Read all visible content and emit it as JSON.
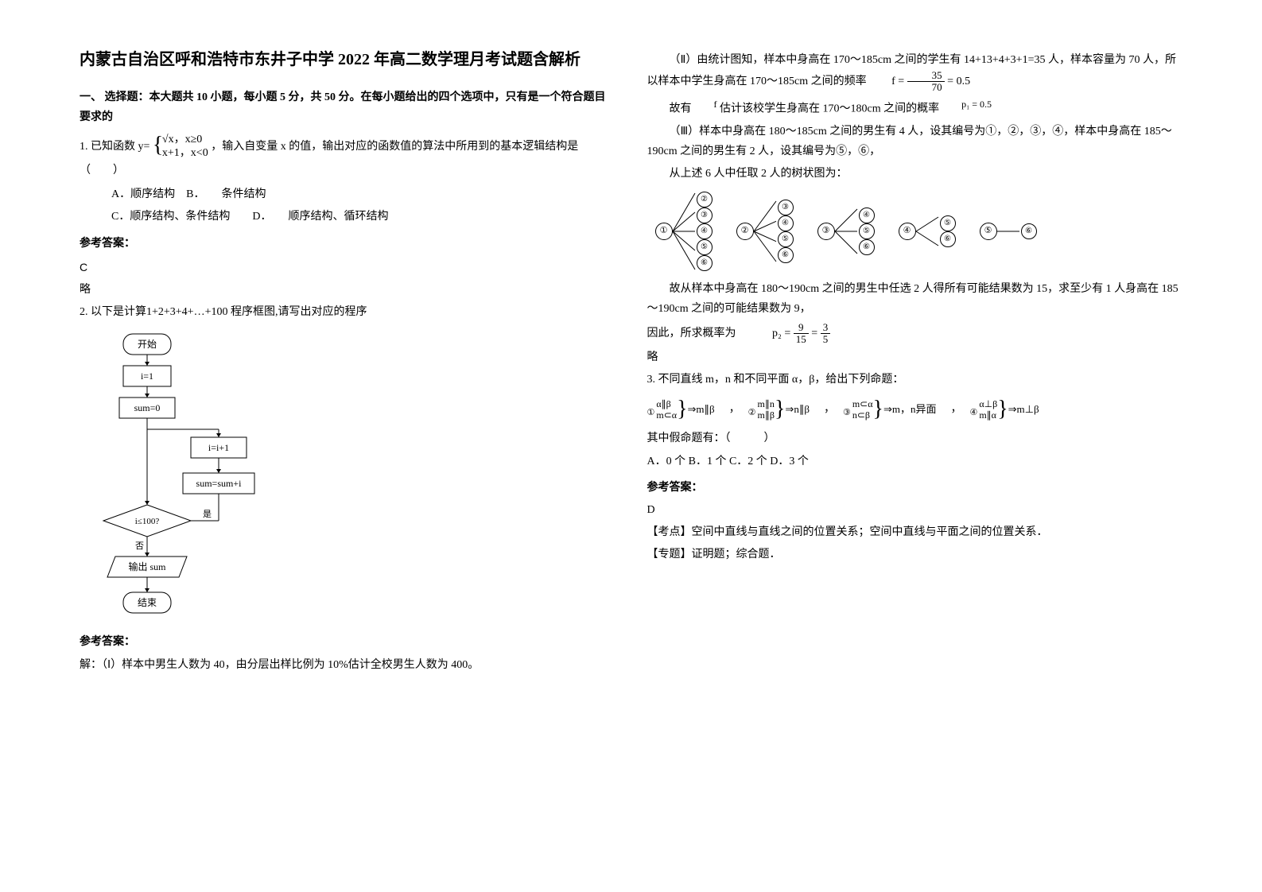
{
  "title": "内蒙古自治区呼和浩特市东井子中学 2022 年高二数学理月考试题含解析",
  "section1_header": "一、 选择题：本大题共 10 小题，每小题 5 分，共 50 分。在每小题给出的四个选项中，只有是一个符合题目要求的",
  "q1": {
    "stem_pre": "1. 已知函数 y=",
    "piecewise_top": "√x，x≥0",
    "piecewise_bot": "x+1，x<0",
    "stem_post": "，输入自变量 x 的值，输出对应的函数值的算法中所用到的基本逻辑结构是（　　）",
    "optA": "A．顺序结构",
    "optB": "B．　　条件结构",
    "optC": "C．顺序结构、条件结构",
    "optD": "D．　　顺序结构、循环结构",
    "answer_label": "参考答案：",
    "answer": "C",
    "note": "略"
  },
  "q2": {
    "stem": "2. 以下是计算",
    "expr": "1+2+3+4+…+100",
    "stem2": " 程序框图,请写出对应的程序",
    "flowchart": {
      "start": "开始",
      "init_i": "i=1",
      "init_sum": "sum=0",
      "inc_i": "i=i+1",
      "acc": "sum=sum+i",
      "cond": "i≤100?",
      "yes": "是",
      "no": "否",
      "out": "输出 sum",
      "end": "结束",
      "stroke": "#000000",
      "fill": "#ffffff"
    },
    "answer_label": "参考答案：",
    "sol_p1": "解：（Ⅰ）样本中男生人数为 40，由分层出样比例为 10%估计全校男生人数为 400。",
    "sol_p2_pre": "（Ⅱ）由统计图知，样本中身高在 170～185cm 之间的学生有 14+13+4+3+1=35 人，样本容量为 70 人，所以样本中学生身高在 170～185cm 之间的频率",
    "sol_p2_f": {
      "lhs": "f =",
      "num": "35",
      "den": "70",
      "rhs": "= 0.5"
    },
    "sol_p3_pre": "故有",
    "sol_p3_f": "f",
    "sol_p3_mid": " 估计该校学生身高在 170～180cm 之间的概率",
    "sol_p3_p1": "p₁ = 0.5",
    "sol_p4": "（Ⅲ）样本中身高在 180～185cm 之间的男生有 4 人，设其编号为①，②，③，④，样本中身高在 185～190cm 之间的男生有 2 人，设其编号为⑤，⑥，",
    "sol_p5": "从上述 6 人中任取 2 人的树状图为：",
    "tree": {
      "roots": [
        "①",
        "②",
        "③",
        "④",
        "⑤"
      ],
      "children": [
        [
          "②",
          "③",
          "④",
          "⑤",
          "⑥"
        ],
        [
          "③",
          "④",
          "⑤",
          "⑥"
        ],
        [
          "④",
          "⑤",
          "⑥"
        ],
        [
          "⑤",
          "⑥"
        ],
        [
          "⑥"
        ]
      ]
    },
    "sol_p6": "故从样本中身高在 180～190cm 之间的男生中任选 2 人得所有可能结果数为 15，求至少有 1 人身高在 185～190cm 之间的可能结果数为 9，",
    "sol_p7_pre": "因此，所求概率为",
    "sol_p7_f": {
      "lhs": "p₂ =",
      "num1": "9",
      "den1": "15",
      "eq": "=",
      "num2": "3",
      "den2": "5"
    },
    "sol_note": "略"
  },
  "q3": {
    "stem": "3. 不同直线 m，n 和不同平面 α，β，给出下列命题：",
    "props": [
      {
        "circ": "①",
        "top1": "α∥β",
        "bot1": "m⊂α",
        "arrow": "⇒m∥β"
      },
      {
        "circ": "②",
        "top1": "m∥n",
        "bot1": "m∥β",
        "arrow": "⇒n∥β"
      },
      {
        "circ": "③",
        "top1": "m⊂α",
        "bot1": "n⊂β",
        "arrow": "⇒m，n异面"
      },
      {
        "circ": "④",
        "top1": "α⊥β",
        "bot1": "m∥α",
        "arrow": "⇒m⊥β"
      }
    ],
    "sep": "，",
    "tail": "其中假命题有：（　　　）",
    "opts": "A．0 个 B．1 个 C．2 个 D．3 个",
    "answer_label": "参考答案：",
    "answer": "D",
    "note1": "【考点】空间中直线与直线之间的位置关系；空间中直线与平面之间的位置关系．",
    "note2": "【专题】证明题；综合题．"
  }
}
